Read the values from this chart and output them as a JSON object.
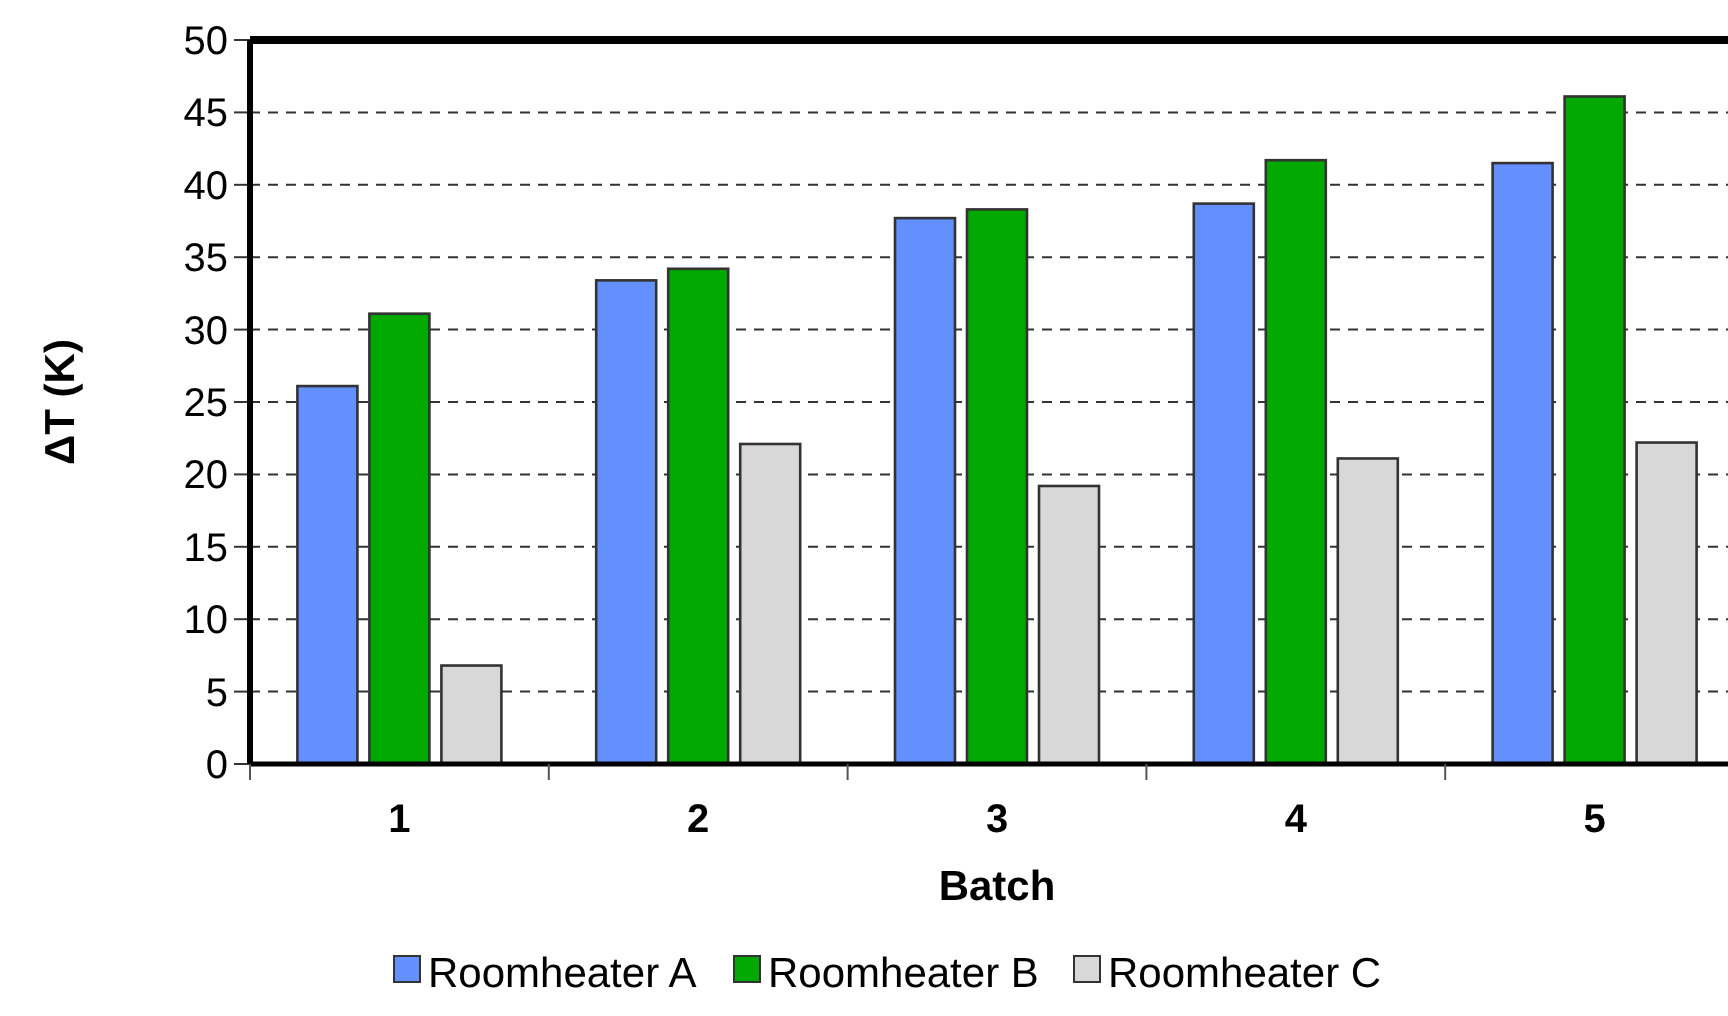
{
  "chart_data": {
    "type": "bar",
    "xlabel": "Batch",
    "ylabel": "ΔT (K)",
    "categories": [
      "1",
      "2",
      "3",
      "4",
      "5"
    ],
    "series": [
      {
        "name": "Roomheater A",
        "color": "#6490ff",
        "values": [
          26.1,
          33.4,
          37.7,
          38.7,
          41.5
        ]
      },
      {
        "name": "Roomheater B",
        "color": "#00a800",
        "values": [
          31.1,
          34.2,
          38.3,
          41.7,
          46.1
        ]
      },
      {
        "name": "Roomheater C",
        "color": "#d8d8d8",
        "values": [
          6.8,
          22.1,
          19.2,
          21.1,
          22.2
        ]
      }
    ],
    "ylim": [
      0,
      50
    ],
    "yticks": [
      0,
      5,
      10,
      15,
      20,
      25,
      30,
      35,
      40,
      45,
      50
    ],
    "grid": "y",
    "legend": "bottom"
  }
}
